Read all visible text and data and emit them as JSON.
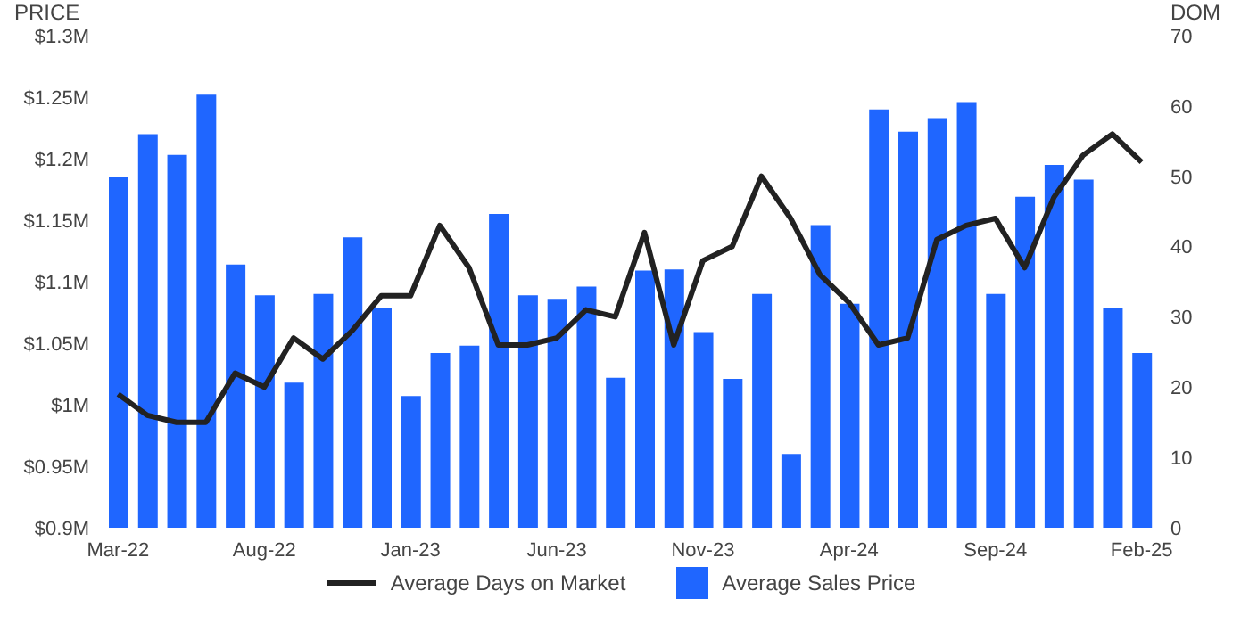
{
  "chart_data": {
    "type": "bar",
    "ylabel": "PRICE",
    "y2label": "DOM",
    "categories": [
      "Mar-22",
      null,
      null,
      null,
      null,
      "Aug-22",
      null,
      null,
      null,
      null,
      "Jan-23",
      null,
      null,
      null,
      null,
      "Jun-23",
      null,
      null,
      null,
      null,
      "Nov-23",
      null,
      null,
      null,
      null,
      "Apr-24",
      null,
      null,
      null,
      null,
      "Sep-24",
      null,
      null,
      null,
      null,
      "Feb-25"
    ],
    "series": [
      {
        "name": "Average Days on Market",
        "type": "line",
        "axis": "y2",
        "color": "#222222",
        "values": [
          19,
          16,
          15,
          15,
          22,
          20,
          27,
          24,
          28,
          33,
          33,
          43,
          37,
          26,
          26,
          27,
          31,
          30,
          42,
          26,
          38,
          40,
          50,
          44,
          36,
          32,
          26,
          27,
          41,
          43,
          44,
          37,
          47,
          53,
          56,
          52
        ]
      },
      {
        "name": "Average Sales Price",
        "color": "#1f66ff",
        "values": [
          1.185,
          1.22,
          1.203,
          1.252,
          1.114,
          1.089,
          1.018,
          1.09,
          1.136,
          1.079,
          1.007,
          1.042,
          1.048,
          1.155,
          1.089,
          1.086,
          1.096,
          1.022,
          1.109,
          1.11,
          1.059,
          1.021,
          1.09,
          0.96,
          1.146,
          1.082,
          1.24,
          1.222,
          1.233,
          1.246,
          1.09,
          1.169,
          1.195,
          1.183,
          1.079,
          1.042
        ]
      }
    ],
    "ylim": [
      0.9,
      1.3
    ],
    "yticks": [
      {
        "value": 0.9,
        "label": "$0.9M"
      },
      {
        "value": 0.95,
        "label": "$0.95M"
      },
      {
        "value": 1,
        "label": "$1M"
      },
      {
        "value": 1.05,
        "label": "$1.05M"
      },
      {
        "value": 1.1,
        "label": "$1.1M"
      },
      {
        "value": 1.15,
        "label": "$1.15M"
      },
      {
        "value": 1.2,
        "label": "$1.2M"
      },
      {
        "value": 1.25,
        "label": "$1.25M"
      },
      {
        "value": 1.3,
        "label": "$1.3M"
      }
    ],
    "y2lim": [
      0,
      70
    ],
    "y2ticks": [
      0,
      10,
      20,
      30,
      40,
      50,
      60,
      70
    ],
    "grid": false,
    "legend": "bottom",
    "marker": "none",
    "line_style": "solid"
  }
}
